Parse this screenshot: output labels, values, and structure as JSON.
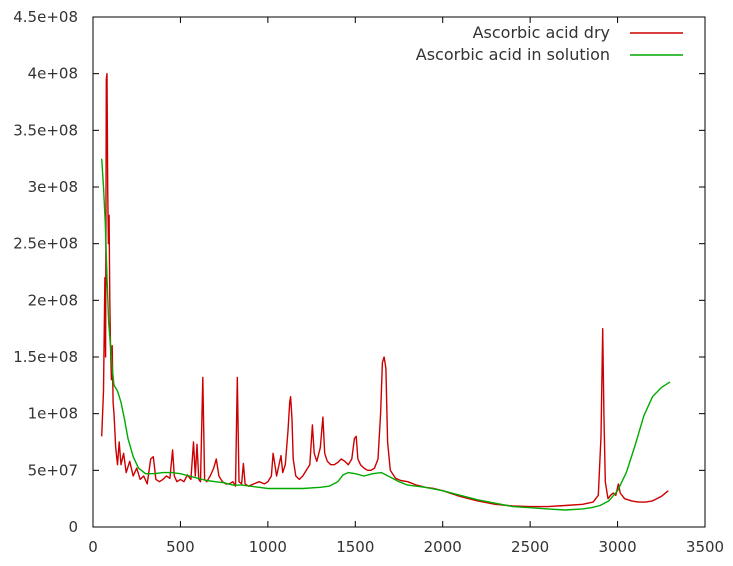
{
  "chart_data": {
    "type": "line",
    "title": "",
    "xlabel": "",
    "ylabel": "",
    "xlim": [
      0,
      3500
    ],
    "ylim": [
      0,
      450000000
    ],
    "grid": false,
    "legend_position": "top-right",
    "x_ticks": [
      {
        "value": 0,
        "label": "0"
      },
      {
        "value": 500,
        "label": "500"
      },
      {
        "value": 1000,
        "label": "1000"
      },
      {
        "value": 1500,
        "label": "1500"
      },
      {
        "value": 2000,
        "label": "2000"
      },
      {
        "value": 2500,
        "label": "2500"
      },
      {
        "value": 3000,
        "label": "3000"
      },
      {
        "value": 3500,
        "label": "3500"
      }
    ],
    "y_ticks": [
      {
        "value": 0,
        "label": "0"
      },
      {
        "value": 50000000,
        "label": "5e+07"
      },
      {
        "value": 100000000,
        "label": "1e+08"
      },
      {
        "value": 150000000,
        "label": "1.5e+08"
      },
      {
        "value": 200000000,
        "label": "2e+08"
      },
      {
        "value": 250000000,
        "label": "2.5e+08"
      },
      {
        "value": 300000000,
        "label": "3e+08"
      },
      {
        "value": 350000000,
        "label": "3.5e+08"
      },
      {
        "value": 400000000,
        "label": "4e+08"
      },
      {
        "value": 450000000,
        "label": "4.5e+08"
      }
    ],
    "series": [
      {
        "name": "Ascorbic acid dry",
        "color": "#cc0000",
        "points": [
          [
            50,
            80000000
          ],
          [
            60,
            120000000
          ],
          [
            68,
            220000000
          ],
          [
            72,
            150000000
          ],
          [
            76,
            395000000
          ],
          [
            80,
            400000000
          ],
          [
            84,
            300000000
          ],
          [
            88,
            250000000
          ],
          [
            92,
            275000000
          ],
          [
            96,
            200000000
          ],
          [
            100,
            160000000
          ],
          [
            105,
            130000000
          ],
          [
            110,
            160000000
          ],
          [
            115,
            110000000
          ],
          [
            120,
            100000000
          ],
          [
            130,
            70000000
          ],
          [
            140,
            55000000
          ],
          [
            150,
            75000000
          ],
          [
            160,
            55000000
          ],
          [
            175,
            65000000
          ],
          [
            190,
            48000000
          ],
          [
            210,
            58000000
          ],
          [
            230,
            45000000
          ],
          [
            250,
            52000000
          ],
          [
            270,
            42000000
          ],
          [
            290,
            45000000
          ],
          [
            310,
            38000000
          ],
          [
            330,
            60000000
          ],
          [
            345,
            62000000
          ],
          [
            360,
            42000000
          ],
          [
            380,
            40000000
          ],
          [
            400,
            42000000
          ],
          [
            420,
            45000000
          ],
          [
            440,
            43000000
          ],
          [
            455,
            68000000
          ],
          [
            465,
            45000000
          ],
          [
            480,
            40000000
          ],
          [
            500,
            42000000
          ],
          [
            520,
            40000000
          ],
          [
            540,
            46000000
          ],
          [
            560,
            42000000
          ],
          [
            575,
            75000000
          ],
          [
            585,
            45000000
          ],
          [
            595,
            73000000
          ],
          [
            605,
            42000000
          ],
          [
            615,
            40000000
          ],
          [
            628,
            132000000
          ],
          [
            638,
            42000000
          ],
          [
            650,
            40000000
          ],
          [
            670,
            45000000
          ],
          [
            690,
            52000000
          ],
          [
            705,
            60000000
          ],
          [
            720,
            45000000
          ],
          [
            740,
            40000000
          ],
          [
            760,
            38000000
          ],
          [
            780,
            38000000
          ],
          [
            800,
            40000000
          ],
          [
            815,
            36000000
          ],
          [
            825,
            132000000
          ],
          [
            835,
            40000000
          ],
          [
            850,
            38000000
          ],
          [
            860,
            56000000
          ],
          [
            870,
            38000000
          ],
          [
            890,
            36000000
          ],
          [
            920,
            38000000
          ],
          [
            950,
            40000000
          ],
          [
            980,
            38000000
          ],
          [
            1000,
            40000000
          ],
          [
            1020,
            45000000
          ],
          [
            1030,
            65000000
          ],
          [
            1040,
            55000000
          ],
          [
            1050,
            45000000
          ],
          [
            1060,
            52000000
          ],
          [
            1075,
            63000000
          ],
          [
            1085,
            48000000
          ],
          [
            1100,
            55000000
          ],
          [
            1115,
            85000000
          ],
          [
            1125,
            110000000
          ],
          [
            1130,
            115000000
          ],
          [
            1138,
            95000000
          ],
          [
            1145,
            60000000
          ],
          [
            1160,
            45000000
          ],
          [
            1180,
            42000000
          ],
          [
            1200,
            45000000
          ],
          [
            1220,
            50000000
          ],
          [
            1240,
            55000000
          ],
          [
            1255,
            90000000
          ],
          [
            1265,
            65000000
          ],
          [
            1280,
            58000000
          ],
          [
            1300,
            70000000
          ],
          [
            1315,
            97000000
          ],
          [
            1325,
            65000000
          ],
          [
            1340,
            58000000
          ],
          [
            1360,
            55000000
          ],
          [
            1380,
            55000000
          ],
          [
            1400,
            57000000
          ],
          [
            1420,
            60000000
          ],
          [
            1440,
            58000000
          ],
          [
            1460,
            55000000
          ],
          [
            1480,
            60000000
          ],
          [
            1495,
            78000000
          ],
          [
            1505,
            80000000
          ],
          [
            1515,
            60000000
          ],
          [
            1530,
            55000000
          ],
          [
            1550,
            52000000
          ],
          [
            1570,
            50000000
          ],
          [
            1590,
            50000000
          ],
          [
            1610,
            52000000
          ],
          [
            1630,
            60000000
          ],
          [
            1645,
            100000000
          ],
          [
            1655,
            145000000
          ],
          [
            1665,
            150000000
          ],
          [
            1675,
            140000000
          ],
          [
            1685,
            75000000
          ],
          [
            1700,
            50000000
          ],
          [
            1730,
            43000000
          ],
          [
            1760,
            41000000
          ],
          [
            1800,
            40000000
          ],
          [
            1850,
            37000000
          ],
          [
            1900,
            35000000
          ],
          [
            1950,
            34000000
          ],
          [
            2000,
            32000000
          ],
          [
            2100,
            27000000
          ],
          [
            2200,
            23000000
          ],
          [
            2300,
            20000000
          ],
          [
            2400,
            18500000
          ],
          [
            2500,
            18000000
          ],
          [
            2600,
            18000000
          ],
          [
            2700,
            19000000
          ],
          [
            2800,
            20000000
          ],
          [
            2860,
            22000000
          ],
          [
            2890,
            28000000
          ],
          [
            2905,
            80000000
          ],
          [
            2915,
            175000000
          ],
          [
            2922,
            100000000
          ],
          [
            2930,
            40000000
          ],
          [
            2945,
            25000000
          ],
          [
            2960,
            28000000
          ],
          [
            2975,
            30000000
          ],
          [
            2990,
            28000000
          ],
          [
            3005,
            38000000
          ],
          [
            3015,
            30000000
          ],
          [
            3040,
            25000000
          ],
          [
            3080,
            23000000
          ],
          [
            3120,
            22000000
          ],
          [
            3160,
            22000000
          ],
          [
            3200,
            23000000
          ],
          [
            3250,
            27000000
          ],
          [
            3290,
            32000000
          ]
        ]
      },
      {
        "name": "Ascorbic acid in solution",
        "color": "#00aa00",
        "points": [
          [
            50,
            325000000
          ],
          [
            60,
            300000000
          ],
          [
            70,
            270000000
          ],
          [
            80,
            220000000
          ],
          [
            90,
            180000000
          ],
          [
            100,
            160000000
          ],
          [
            110,
            140000000
          ],
          [
            120,
            125000000
          ],
          [
            140,
            120000000
          ],
          [
            160,
            110000000
          ],
          [
            180,
            95000000
          ],
          [
            200,
            78000000
          ],
          [
            230,
            62000000
          ],
          [
            260,
            52000000
          ],
          [
            300,
            47000000
          ],
          [
            350,
            47000000
          ],
          [
            400,
            48000000
          ],
          [
            450,
            48000000
          ],
          [
            500,
            47000000
          ],
          [
            550,
            45000000
          ],
          [
            600,
            43000000
          ],
          [
            650,
            41000000
          ],
          [
            700,
            40000000
          ],
          [
            750,
            39000000
          ],
          [
            800,
            37000000
          ],
          [
            850,
            37000000
          ],
          [
            900,
            36000000
          ],
          [
            950,
            35000000
          ],
          [
            1000,
            34000000
          ],
          [
            1100,
            34000000
          ],
          [
            1200,
            34000000
          ],
          [
            1300,
            35000000
          ],
          [
            1350,
            36000000
          ],
          [
            1400,
            40000000
          ],
          [
            1430,
            46000000
          ],
          [
            1460,
            48000000
          ],
          [
            1500,
            47000000
          ],
          [
            1550,
            45000000
          ],
          [
            1600,
            47000000
          ],
          [
            1650,
            48000000
          ],
          [
            1700,
            44000000
          ],
          [
            1750,
            40000000
          ],
          [
            1800,
            37000000
          ],
          [
            1900,
            35000000
          ],
          [
            2000,
            32000000
          ],
          [
            2100,
            28000000
          ],
          [
            2200,
            24000000
          ],
          [
            2300,
            21000000
          ],
          [
            2400,
            18000000
          ],
          [
            2500,
            17000000
          ],
          [
            2600,
            16000000
          ],
          [
            2700,
            15000000
          ],
          [
            2800,
            16000000
          ],
          [
            2850,
            17000000
          ],
          [
            2900,
            19000000
          ],
          [
            2950,
            23000000
          ],
          [
            3000,
            32000000
          ],
          [
            3050,
            48000000
          ],
          [
            3100,
            72000000
          ],
          [
            3150,
            98000000
          ],
          [
            3200,
            115000000
          ],
          [
            3250,
            123000000
          ],
          [
            3300,
            128000000
          ]
        ]
      }
    ]
  }
}
